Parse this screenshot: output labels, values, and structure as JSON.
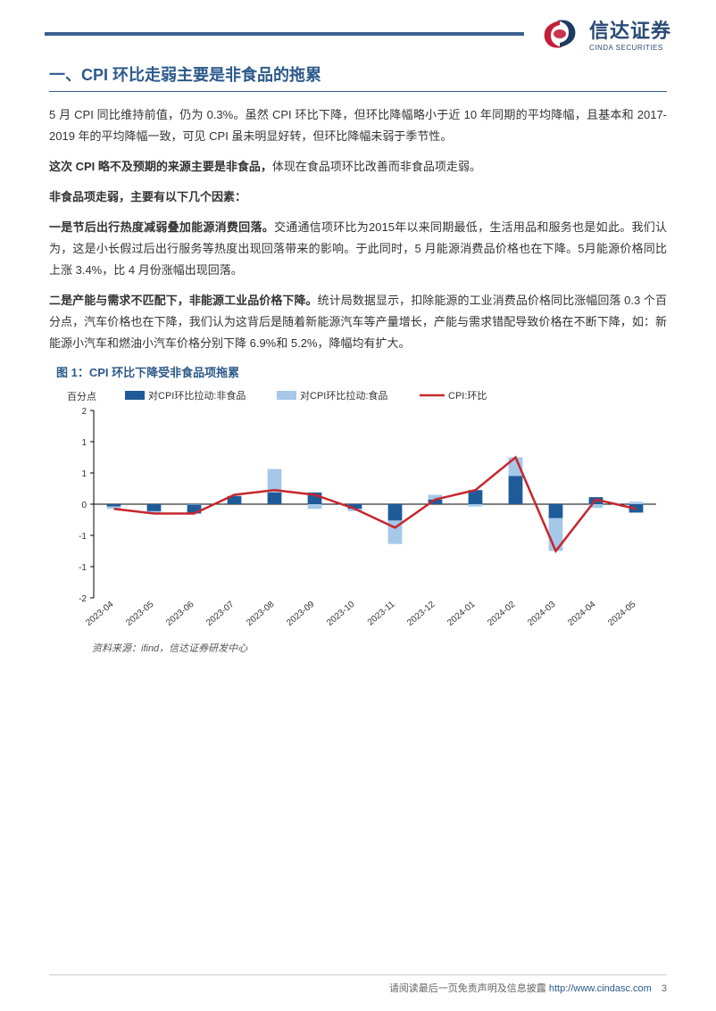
{
  "logo": {
    "cn": "信达证券",
    "en": "CINDA SECURITIES",
    "swirl_red": "#c41e3a",
    "swirl_blue": "#1e3a5f"
  },
  "section_title": "一、CPI 环比走弱主要是非食品的拖累",
  "paragraphs": {
    "p1": "5 月 CPI 同比维持前值，仍为 0.3%。虽然 CPI 环比下降，但环比降幅略小于近 10 年同期的平均降幅，且基本和 2017-2019 年的平均降幅一致，可见 CPI 虽未明显好转，但环比降幅未弱于季节性。",
    "p2_bold": "这次 CPI 略不及预期的来源主要是非食品，",
    "p2_rest": "体现在食品项环比改善而非食品项走弱。",
    "p3": "非食品项走弱，主要有以下几个因素：",
    "p4_bold": "一是节后出行热度减弱叠加能源消费回落。",
    "p4_rest": "交通通信项环比为2015年以来同期最低，生活用品和服务也是如此。我们认为，这是小长假过后出行服务等热度出现回落带来的影响。于此同时，5 月能源消费品价格也在下降。5月能源价格同比上涨 3.4%，比 4 月份涨幅出现回落。",
    "p5_bold": "二是产能与需求不匹配下，非能源工业品价格下降。",
    "p5_rest": "统计局数据显示，扣除能源的工业消费品价格同比涨幅回落 0.3 个百分点，汽车价格也在下降，我们认为这背后是随着新能源汽车等产量增长，产能与需求错配导致价格在不断下降，如：新能源小汽车和燃油小汽车价格分别下降 6.9%和 5.2%，降幅均有扩大。"
  },
  "chart": {
    "title": "图 1：CPI 环比下降受非食品项拖累",
    "y_label": "百分点",
    "legend": {
      "nonfood": "对CPI环比拉动:非食品",
      "food": "对CPI环比拉动:食品",
      "cpi": "CPI:环比"
    },
    "colors": {
      "nonfood": "#1f5b99",
      "food": "#a5c8e8",
      "cpi_line": "#c7262e",
      "axis": "#000000",
      "grid": "#ffffff",
      "background": "#ffffff"
    },
    "y_axis": {
      "min": -2,
      "max": 2,
      "ticks": [
        -2,
        -1,
        -1,
        0,
        1,
        1,
        2
      ]
    },
    "categories": [
      "2023-04",
      "2023-05",
      "2023-06",
      "2023-07",
      "2023-08",
      "2023-09",
      "2023-10",
      "2023-11",
      "2023-12",
      "2024-01",
      "2024-02",
      "2024-03",
      "2024-04",
      "2024-05"
    ],
    "series": {
      "nonfood": [
        -0.05,
        -0.15,
        -0.2,
        0.18,
        0.25,
        0.25,
        -0.1,
        -0.35,
        0.1,
        0.3,
        0.6,
        -0.3,
        0.15,
        -0.18
      ],
      "food": [
        -0.05,
        -0.05,
        -0.0,
        0.0,
        0.5,
        -0.1,
        -0.05,
        -0.5,
        0.1,
        -0.05,
        0.4,
        -0.7,
        -0.08,
        0.05
      ],
      "cpi": [
        -0.1,
        -0.2,
        -0.2,
        0.2,
        0.3,
        0.2,
        -0.1,
        -0.5,
        0.1,
        0.3,
        1.0,
        -1.0,
        0.1,
        -0.1
      ]
    },
    "source": "资料来源：ifind，信达证券研发中心",
    "style": {
      "bar_width": 0.35,
      "line_width": 2.5,
      "font_size_axis": 10,
      "font_size_legend": 11
    }
  },
  "footer": {
    "text": "请阅读最后一页免责声明及信息披露",
    "url_label": "http://www.cindasc.com",
    "page": "3"
  }
}
